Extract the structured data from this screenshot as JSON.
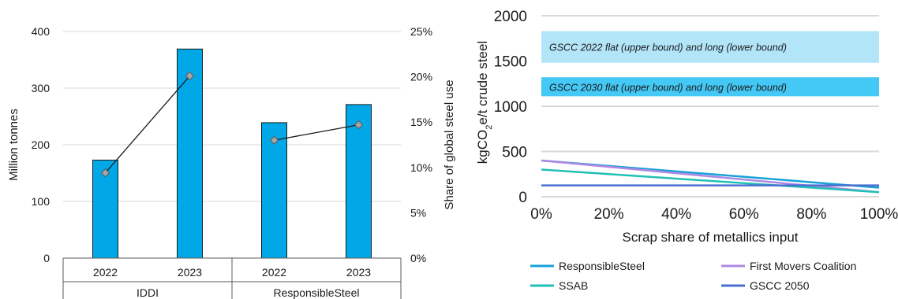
{
  "chart_data": [
    {
      "type": "bar",
      "categories": [
        "2022",
        "2023",
        "2022",
        "2023"
      ],
      "groups": [
        "IDDI",
        "ResponsibleSteel"
      ],
      "group_spans": [
        [
          0,
          2
        ],
        [
          2,
          4
        ]
      ],
      "series": [
        {
          "type": "bar",
          "axis": "left",
          "values": [
            173,
            369,
            239,
            271
          ],
          "color": "#00a8e8"
        },
        {
          "type": "line",
          "axis": "right",
          "values": [
            0.094,
            0.201,
            0.13,
            0.147
          ],
          "color": "#1a1a1a",
          "marker": "diamond",
          "marker_color": "#a6a6a6"
        }
      ],
      "ylabel": "Million tonnes",
      "ylim": [
        0,
        400
      ],
      "yticks": [
        0,
        100,
        200,
        300,
        400
      ],
      "y2label": "Share of global steel use",
      "y2lim": [
        0,
        0.25
      ],
      "y2ticks": [
        "0%",
        "5%",
        "10%",
        "15%",
        "20%",
        "25%"
      ],
      "grid": "horizontal"
    },
    {
      "type": "line",
      "xlabel": "Scrap share of metallics input",
      "ylabel_parts": [
        "kgCO",
        "2",
        "e/t crude steel"
      ],
      "xlim": [
        0,
        1
      ],
      "ylim": [
        0,
        2000
      ],
      "xticks": [
        "0%",
        "20%",
        "40%",
        "60%",
        "80%",
        "100%"
      ],
      "yticks": [
        0,
        500,
        1000,
        1500,
        2000
      ],
      "grid": "horizontal",
      "bands": [
        {
          "label": "GSCC 2022 flat (upper bound) and long (lower bound)",
          "y0": 1480,
          "y1": 1830,
          "color": "#b3e5f9"
        },
        {
          "label": "GSCC 2030 flat (upper bound) and long (lower bound)",
          "y0": 1110,
          "y1": 1320,
          "color": "#44c8f5"
        }
      ],
      "series": [
        {
          "name": "ResponsibleSteel",
          "x": [
            0,
            1
          ],
          "y": [
            400,
            100
          ],
          "color": "#17a2d8"
        },
        {
          "name": "First Movers Coalition",
          "x": [
            0,
            1
          ],
          "y": [
            400,
            50
          ],
          "color": "#b088e3"
        },
        {
          "name": "SSAB",
          "x": [
            0,
            1
          ],
          "y": [
            300,
            50
          ],
          "color": "#21c0b5"
        },
        {
          "name": "GSCC 2050",
          "x": [
            0,
            1
          ],
          "y": [
            125,
            125
          ],
          "color": "#4a6fd1"
        }
      ],
      "legend": "bottom"
    }
  ]
}
